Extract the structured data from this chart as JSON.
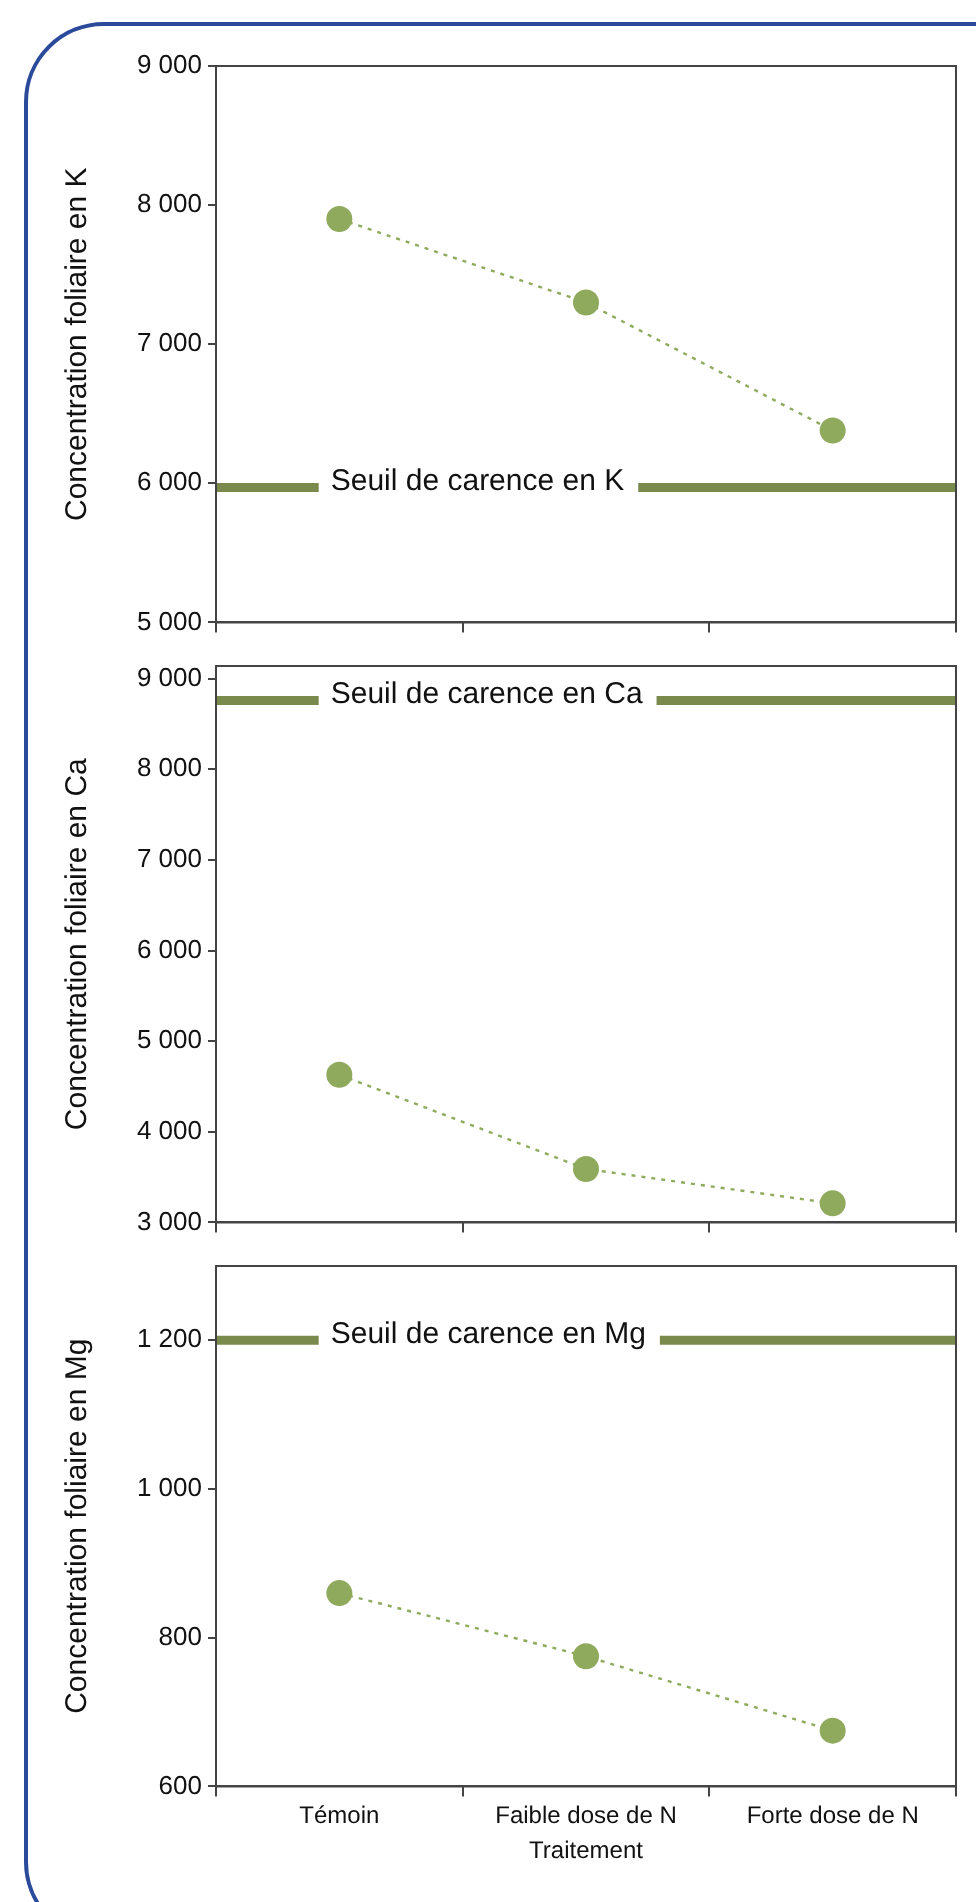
{
  "chart_data": [
    {
      "type": "line",
      "ylabel": "Concentration foliaire en K",
      "categories": [
        null,
        null,
        null
      ],
      "series": [
        {
          "color": "#8faa5c",
          "values": [
            7900,
            7300,
            6380
          ]
        }
      ],
      "ylim": [
        5000,
        9000
      ],
      "yticks": [
        {
          "value": 5000,
          "label": "5 000"
        },
        {
          "value": 6000,
          "label": "6 000"
        },
        {
          "value": 7000,
          "label": "7 000"
        },
        {
          "value": 8000,
          "label": "8 000"
        },
        {
          "value": 9000,
          "label": "9 000"
        }
      ],
      "ref_lines": [
        {
          "axis": "y",
          "value": 5970,
          "label": "Seuil de carence en K",
          "color": "#7a8a4c"
        }
      ],
      "grid": false,
      "legend": false,
      "marker": "circle",
      "line_style": "dotted",
      "tick_labels": "y"
    },
    {
      "type": "line",
      "ylabel": "Concentration foliaire en Ca",
      "categories": [
        null,
        null,
        null
      ],
      "series": [
        {
          "color": "#8faa5c",
          "values": [
            4630,
            3590,
            3210
          ]
        }
      ],
      "ylim": [
        3000,
        9140
      ],
      "yticks": [
        {
          "value": 3000,
          "label": "3 000"
        },
        {
          "value": 4000,
          "label": "4 000"
        },
        {
          "value": 5000,
          "label": "5 000"
        },
        {
          "value": 6000,
          "label": "6 000"
        },
        {
          "value": 7000,
          "label": "7 000"
        },
        {
          "value": 8000,
          "label": "8 000"
        },
        {
          "value": 9000,
          "label": "9 000"
        }
      ],
      "ref_lines": [
        {
          "axis": "y",
          "value": 8760,
          "label": "Seuil de carence en Ca",
          "color": "#7a8a4c"
        }
      ],
      "grid": false,
      "legend": false,
      "marker": "circle",
      "line_style": "dotted",
      "tick_labels": "y"
    },
    {
      "type": "line",
      "xlabel": "Traitement",
      "ylabel": "Concentration foliaire en Mg",
      "categories": [
        "Témoin",
        "Faible dose de N",
        "Forte dose de N"
      ],
      "series": [
        {
          "color": "#8faa5c",
          "values": [
            860,
            775,
            675
          ]
        }
      ],
      "ylim": [
        600,
        1300
      ],
      "yticks": [
        600,
        800,
        {
          "value": 1000,
          "label": "1 000"
        },
        {
          "value": 1200,
          "label": "1 200"
        }
      ],
      "ref_lines": [
        {
          "axis": "y",
          "value": 1200,
          "label": "Seuil de carence en Mg",
          "color": "#7a8a4c"
        }
      ],
      "grid": false,
      "legend": false,
      "marker": "circle",
      "line_style": "dotted"
    }
  ]
}
